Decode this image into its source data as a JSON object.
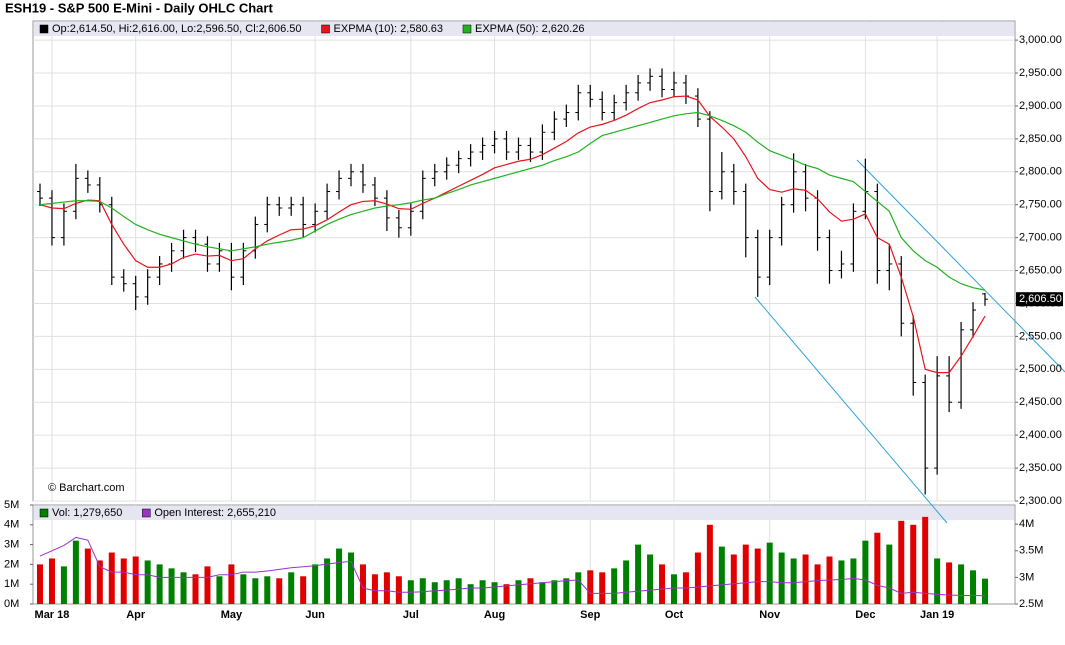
{
  "chart_data": [
    {
      "type": "ohlc",
      "title": "ESH19 - S&P 500 E-Mini - Daily OHLC Chart",
      "annotation": "© Barchart.com",
      "name": "Op:2,614.50, Hi:2,616.00, Lo:2,596.50, Cl:2,606.50",
      "color": "#000000",
      "open": [
        2770,
        2760,
        2700,
        2740,
        2790,
        2780,
        2750,
        2640,
        2630,
        2610,
        2640,
        2660,
        2680,
        2700,
        2690,
        2660,
        2680,
        2640,
        2680,
        2720,
        2750,
        2745,
        2750,
        2720,
        2740,
        2770,
        2790,
        2800,
        2780,
        2760,
        2730,
        2715,
        2740,
        2790,
        2800,
        2810,
        2820,
        2830,
        2840,
        2850,
        2830,
        2840,
        2830,
        2860,
        2880,
        2890,
        2920,
        2910,
        2890,
        2905,
        2920,
        2935,
        2945,
        2925,
        2935,
        2915,
        2880,
        2770,
        2800,
        2770,
        2700,
        2640,
        2700,
        2750,
        2800,
        2760,
        2700,
        2650,
        2660,
        2740,
        2770,
        2650,
        2660,
        2570,
        2480,
        2350,
        2490,
        2450,
        2560,
        2614.5
      ],
      "high": [
        2782,
        2772,
        2752,
        2812,
        2802,
        2792,
        2762,
        2652,
        2642,
        2652,
        2672,
        2692,
        2712,
        2712,
        2702,
        2692,
        2692,
        2692,
        2732,
        2762,
        2762,
        2762,
        2762,
        2752,
        2782,
        2802,
        2812,
        2812,
        2792,
        2772,
        2742,
        2752,
        2802,
        2812,
        2822,
        2832,
        2842,
        2852,
        2862,
        2862,
        2852,
        2852,
        2872,
        2892,
        2902,
        2932,
        2932,
        2922,
        2917,
        2932,
        2947,
        2957,
        2957,
        2952,
        2947,
        2927,
        2892,
        2830,
        2812,
        2782,
        2712,
        2712,
        2762,
        2828,
        2812,
        2772,
        2712,
        2680,
        2752,
        2820,
        2782,
        2690,
        2672,
        2582,
        2492,
        2520,
        2520,
        2572,
        2602,
        2616
      ],
      "low": [
        2748,
        2688,
        2688,
        2728,
        2768,
        2738,
        2628,
        2618,
        2590,
        2598,
        2628,
        2648,
        2668,
        2678,
        2648,
        2648,
        2620,
        2628,
        2668,
        2708,
        2733,
        2733,
        2700,
        2708,
        2728,
        2758,
        2778,
        2768,
        2748,
        2710,
        2700,
        2703,
        2728,
        2778,
        2788,
        2798,
        2808,
        2818,
        2828,
        2818,
        2818,
        2815,
        2818,
        2848,
        2868,
        2878,
        2898,
        2878,
        2878,
        2893,
        2908,
        2923,
        2913,
        2913,
        2903,
        2868,
        2740,
        2758,
        2750,
        2670,
        2610,
        2628,
        2688,
        2738,
        2740,
        2680,
        2630,
        2638,
        2648,
        2728,
        2630,
        2620,
        2550,
        2460,
        2310,
        2340,
        2435,
        2440,
        2548,
        2596.5
      ],
      "close": [
        2760,
        2700,
        2740,
        2790,
        2780,
        2750,
        2640,
        2630,
        2610,
        2640,
        2660,
        2680,
        2700,
        2690,
        2660,
        2680,
        2640,
        2680,
        2720,
        2750,
        2745,
        2750,
        2720,
        2740,
        2770,
        2790,
        2800,
        2780,
        2760,
        2730,
        2715,
        2740,
        2790,
        2800,
        2810,
        2820,
        2830,
        2840,
        2850,
        2830,
        2840,
        2830,
        2860,
        2880,
        2890,
        2920,
        2910,
        2890,
        2905,
        2920,
        2935,
        2945,
        2925,
        2935,
        2915,
        2880,
        2770,
        2800,
        2770,
        2700,
        2640,
        2700,
        2750,
        2800,
        2760,
        2700,
        2650,
        2660,
        2740,
        2770,
        2650,
        2660,
        2570,
        2480,
        2350,
        2490,
        2450,
        2560,
        2590,
        2606.5
      ],
      "series": [
        {
          "name": "EXPMA (10): 2,580.63",
          "color": "#e8131b",
          "values": [
            2750,
            2745,
            2744,
            2752,
            2757,
            2756,
            2720,
            2690,
            2665,
            2655,
            2655,
            2660,
            2670,
            2675,
            2672,
            2673,
            2665,
            2668,
            2683,
            2695,
            2704,
            2712,
            2713,
            2718,
            2727,
            2739,
            2750,
            2755,
            2756,
            2751,
            2744,
            2743,
            2752,
            2760,
            2769,
            2778,
            2787,
            2796,
            2806,
            2811,
            2816,
            2819,
            2826,
            2836,
            2846,
            2859,
            2868,
            2872,
            2878,
            2886,
            2896,
            2905,
            2909,
            2914,
            2915,
            2909,
            2884,
            2868,
            2850,
            2823,
            2790,
            2773,
            2769,
            2774,
            2772,
            2759,
            2739,
            2725,
            2728,
            2736,
            2700,
            2690,
            2640,
            2580,
            2500,
            2495,
            2495,
            2520,
            2550,
            2580.63
          ]
        },
        {
          "name": "EXPMA (50): 2,620.26",
          "color": "#1fb31f",
          "values": [
            2750,
            2752,
            2754,
            2756,
            2756,
            2755,
            2745,
            2732,
            2720,
            2712,
            2705,
            2700,
            2695,
            2690,
            2686,
            2683,
            2680,
            2683,
            2686,
            2690,
            2693,
            2696,
            2700,
            2710,
            2720,
            2728,
            2735,
            2740,
            2745,
            2748,
            2750,
            2753,
            2757,
            2760,
            2767,
            2773,
            2780,
            2785,
            2790,
            2795,
            2800,
            2805,
            2810,
            2817,
            2823,
            2830,
            2843,
            2855,
            2860,
            2865,
            2870,
            2875,
            2880,
            2885,
            2888,
            2890,
            2885,
            2878,
            2870,
            2860,
            2845,
            2832,
            2825,
            2818,
            2810,
            2805,
            2795,
            2790,
            2785,
            2770,
            2755,
            2740,
            2700,
            2680,
            2665,
            2655,
            2640,
            2630,
            2624,
            2620.26
          ]
        }
      ],
      "last_label": {
        "value": 2606.5,
        "label": "2,606.50"
      },
      "ylim": [
        2300,
        3029
      ],
      "yticks": [
        {
          "value": 2300,
          "label": "2,300.00"
        },
        {
          "value": 2350,
          "label": "2,350.00"
        },
        {
          "value": 2400,
          "label": "2,400.00"
        },
        {
          "value": 2450,
          "label": "2,450.00"
        },
        {
          "value": 2500,
          "label": "2,500.00"
        },
        {
          "value": 2550,
          "label": "2,550.00"
        },
        {
          "value": 2600,
          "label": "2,600.00"
        },
        {
          "value": 2650,
          "label": "2,650.00"
        },
        {
          "value": 2700,
          "label": "2,700.00"
        },
        {
          "value": 2750,
          "label": "2,750.00"
        },
        {
          "value": 2800,
          "label": "2,800.00"
        },
        {
          "value": 2850,
          "label": "2,850.00"
        },
        {
          "value": 2900,
          "label": "2,900.00"
        },
        {
          "value": 2950,
          "label": "2,950.00"
        },
        {
          "value": 3000,
          "label": "3,000.00"
        }
      ],
      "grid": true
    },
    {
      "type": "volume",
      "categories": [
        null,
        "Mar 18",
        null,
        null,
        null,
        null,
        null,
        null,
        "Apr",
        null,
        null,
        null,
        null,
        null,
        null,
        null,
        "May",
        null,
        null,
        null,
        null,
        null,
        null,
        "Jun",
        null,
        null,
        null,
        null,
        null,
        null,
        null,
        "Jul",
        null,
        null,
        null,
        null,
        null,
        null,
        "Aug",
        null,
        null,
        null,
        null,
        null,
        null,
        null,
        "Sep",
        null,
        null,
        null,
        null,
        null,
        null,
        "Oct",
        null,
        null,
        null,
        null,
        null,
        null,
        null,
        "Nov",
        null,
        null,
        null,
        null,
        null,
        null,
        null,
        "Dec",
        null,
        null,
        null,
        null,
        null,
        "Jan 19",
        null,
        null,
        null,
        null
      ],
      "series": [
        {
          "name": "Vol: 1,279,650",
          "color": "#008000",
          "values": [
            2.0,
            2.3,
            1.9,
            3.2,
            2.8,
            2.2,
            2.6,
            2.3,
            2.4,
            2.2,
            2.0,
            1.8,
            1.6,
            1.5,
            1.9,
            1.4,
            2.0,
            1.5,
            1.3,
            1.4,
            1.3,
            1.6,
            1.4,
            2.0,
            2.3,
            2.8,
            2.6,
            2.0,
            1.5,
            1.6,
            1.4,
            1.2,
            1.3,
            1.1,
            1.2,
            1.3,
            1.0,
            1.2,
            1.1,
            1.0,
            1.2,
            1.3,
            1.1,
            1.2,
            1.3,
            1.6,
            1.7,
            1.6,
            1.8,
            2.2,
            3.0,
            2.5,
            2.0,
            1.5,
            1.6,
            2.6,
            4.0,
            2.9,
            2.5,
            3.0,
            2.8,
            3.1,
            2.6,
            2.3,
            2.5,
            2.0,
            2.4,
            2.2,
            2.3,
            3.2,
            3.6,
            3.0,
            4.2,
            4.0,
            4.4,
            2.3,
            2.1,
            2.0,
            1.7,
            1.27965
          ]
        },
        {
          "name": "Open Interest: 2,655,210",
          "color": "#9933cc",
          "axis": "y2",
          "values": [
            3.4,
            3.5,
            3.6,
            3.75,
            3.7,
            3.2,
            3.1,
            3.1,
            3.05,
            3.05,
            3.0,
            3.0,
            3.0,
            3.0,
            3.0,
            3.05,
            3.05,
            3.1,
            3.1,
            3.12,
            3.15,
            3.18,
            3.2,
            3.22,
            3.25,
            3.28,
            3.3,
            2.8,
            2.75,
            2.75,
            2.72,
            2.72,
            2.73,
            2.75,
            2.76,
            2.78,
            2.8,
            2.8,
            2.82,
            2.84,
            2.86,
            2.88,
            2.9,
            2.92,
            2.94,
            2.95,
            2.7,
            2.7,
            2.7,
            2.72,
            2.74,
            2.76,
            2.78,
            2.8,
            2.8,
            2.82,
            2.84,
            2.86,
            2.88,
            2.9,
            2.92,
            2.92,
            2.9,
            2.9,
            2.92,
            2.94,
            2.95,
            2.96,
            2.98,
            2.95,
            2.85,
            2.8,
            2.7,
            2.72,
            2.7,
            2.68,
            2.67,
            2.66,
            2.66,
            2.65521
          ]
        }
      ],
      "down_color": "#e00000",
      "ylim": [
        0,
        5
      ],
      "yticks": [
        {
          "value": 0,
          "label": "0M"
        },
        {
          "value": 1,
          "label": "1M"
        },
        {
          "value": 2,
          "label": "2M"
        },
        {
          "value": 3,
          "label": "3M"
        },
        {
          "value": 4,
          "label": "4M"
        },
        {
          "value": 5,
          "label": "5M"
        }
      ],
      "y2lim": [
        2.5,
        4.36
      ],
      "y2ticks": [
        {
          "value": 2.5,
          "label": "2.5M"
        },
        {
          "value": 3,
          "label": "3M"
        },
        {
          "value": 3.5,
          "label": "3.5M"
        },
        {
          "value": 4,
          "label": "4M"
        }
      ]
    }
  ]
}
